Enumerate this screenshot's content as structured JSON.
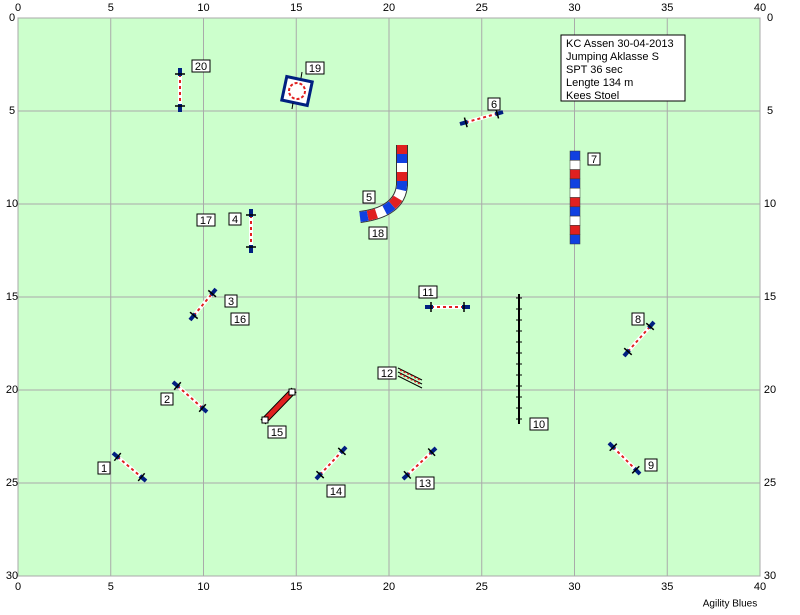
{
  "axes": {
    "xticks": [
      0,
      5,
      10,
      15,
      20,
      25,
      30,
      35,
      40
    ],
    "yticks": [
      0,
      5,
      10,
      15,
      20,
      25,
      30
    ],
    "xlim": [
      0,
      40
    ],
    "ylim": [
      0,
      30
    ]
  },
  "info": [
    "KC Assen 30-04-2013",
    "Jumping Aklasse S",
    "SPT 36 sec",
    "Lengte 134 m",
    "Kees Stoel"
  ],
  "obstacles": {
    "labels": [
      "1",
      "2",
      "3",
      "4",
      "5",
      "6",
      "7",
      "8",
      "9",
      "10",
      "11",
      "12",
      "13",
      "14",
      "15",
      "16",
      "17",
      "18",
      "19",
      "20"
    ]
  },
  "footer": "Agility Blues"
}
